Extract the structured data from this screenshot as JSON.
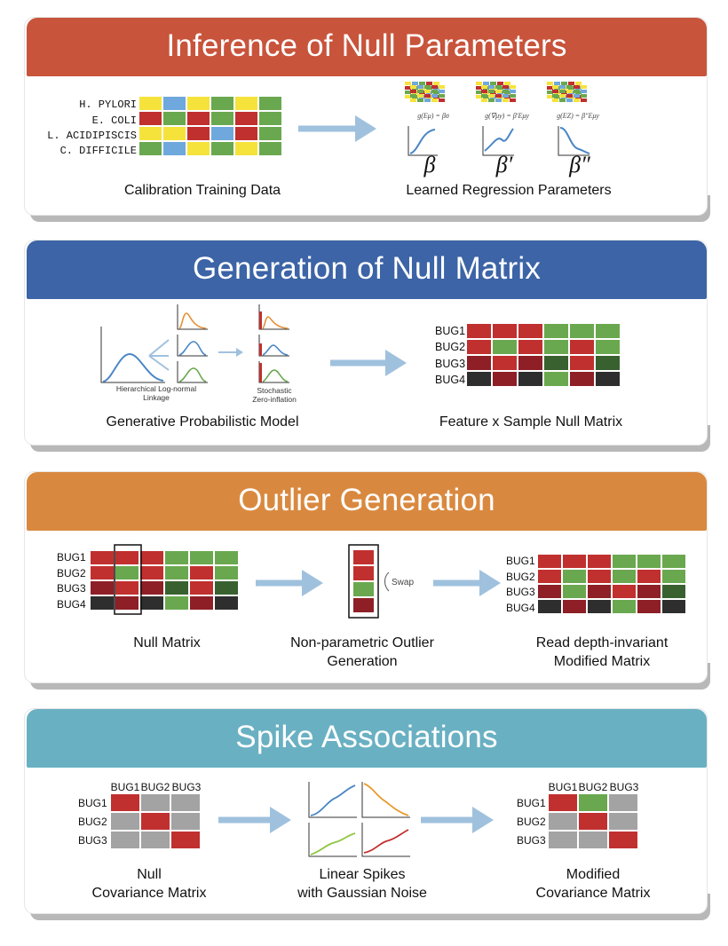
{
  "sections": [
    {
      "title": "Inference of Null Parameters",
      "color": "#c8543b"
    },
    {
      "title": "Generation of Null Matrix",
      "color": "#3c64a6"
    },
    {
      "title": "Outlier Generation",
      "color": "#d9893f"
    },
    {
      "title": "Spike Associations",
      "color": "#6ab0c3"
    }
  ],
  "s1": {
    "bugs": [
      "H. PYLORI",
      "E. COLI",
      "L. ACIDIPISCIS",
      "C. DIFFICILE"
    ],
    "caption_left": "Calibration Training Data",
    "caption_right": "Learned Regression Parameters",
    "formulas": [
      "g(Eμ) = βσ",
      "g(∇μy) = β′Eμy",
      "g(EZ) = β″Eμy"
    ],
    "params": [
      "β",
      "β′",
      "β″"
    ]
  },
  "s2": {
    "label_hier": [
      "Hierarchical Log-normal",
      "Linkage"
    ],
    "label_zero": [
      "Stochastic",
      "Zero-inflation"
    ],
    "caption_left": "Generative Probabilistic Model",
    "caption_right": "Feature x Sample Null Matrix",
    "bugs": [
      "BUG1",
      "BUG2",
      "BUG3",
      "BUG4"
    ]
  },
  "s3": {
    "bugs": [
      "BUG1",
      "BUG2",
      "BUG3",
      "BUG4"
    ],
    "swap_label": "Swap",
    "caption_left": "Null Matrix",
    "caption_mid": [
      "Non-parametric Outlier",
      "Generation"
    ],
    "caption_right": [
      "Read depth-invariant",
      "Modified Matrix"
    ]
  },
  "s4": {
    "bugs": [
      "BUG1",
      "BUG2",
      "BUG3"
    ],
    "caption_left": [
      "Null",
      "Covariance Matrix"
    ],
    "caption_mid": [
      "Linear Spikes",
      "with Gaussian Noise"
    ],
    "caption_right": [
      "Modified",
      "Covariance Matrix"
    ]
  },
  "colors": {
    "red": "#c0302f",
    "green": "#6aa84f",
    "yellow": "#f5e33b",
    "blue": "#6fa8dc",
    "dark_red": "#8e1f26",
    "dark_green": "#38612f",
    "black": "#2e2e2e",
    "gray": "#a3a3a3",
    "arrow": "#9fc1de"
  }
}
